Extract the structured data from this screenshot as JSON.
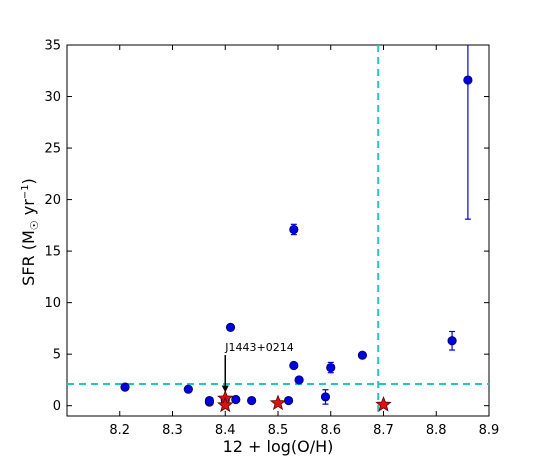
{
  "chart_data": {
    "type": "scatter",
    "xlabel": "12 + log(O/H)",
    "ylabel_main": "SFR (M",
    "ylabel_sub": "☉",
    "ylabel_unit": " yr",
    "ylabel_sup": "−1",
    "ylabel_close": ")",
    "xlim": [
      8.1,
      8.9
    ],
    "ylim": [
      -1,
      35
    ],
    "x_ticks": [
      "8.2",
      "8.3",
      "8.4",
      "8.5",
      "8.6",
      "8.7",
      "8.8",
      "8.9"
    ],
    "y_ticks": [
      "0",
      "5",
      "10",
      "15",
      "20",
      "25",
      "30",
      "35"
    ],
    "grid": false,
    "colors": {
      "circles": "#0000dd",
      "stars": "#dd1111",
      "reference_lines": "#22c4c4"
    },
    "reference_lines": {
      "horizontal_y": 2.1,
      "vertical_x": 8.69
    },
    "circles": [
      {
        "x": 8.21,
        "y": 1.8
      },
      {
        "x": 8.33,
        "y": 1.6
      },
      {
        "x": 8.37,
        "y": 0.35
      },
      {
        "x": 8.37,
        "y": 0.5
      },
      {
        "x": 8.4,
        "y": 0.55
      },
      {
        "x": 8.41,
        "y": 7.6
      },
      {
        "x": 8.42,
        "y": 0.6
      },
      {
        "x": 8.45,
        "y": 0.5
      },
      {
        "x": 8.52,
        "y": 0.5
      },
      {
        "x": 8.53,
        "y": 3.9
      },
      {
        "x": 8.53,
        "y": 17.1,
        "err": 0.5
      },
      {
        "x": 8.54,
        "y": 2.5
      },
      {
        "x": 8.59,
        "y": 0.85,
        "err": 0.7
      },
      {
        "x": 8.6,
        "y": 3.7,
        "err": 0.5
      },
      {
        "x": 8.66,
        "y": 4.9
      },
      {
        "x": 8.83,
        "y": 6.3,
        "err": 0.9
      },
      {
        "x": 8.86,
        "y": 31.6,
        "err_low": 13.5,
        "err_high": 10
      }
    ],
    "stars": [
      {
        "x": 8.4,
        "y": 0.7
      },
      {
        "x": 8.4,
        "y": 0.05
      },
      {
        "x": 8.5,
        "y": 0.25
      },
      {
        "x": 8.7,
        "y": 0.1
      }
    ],
    "annotation": {
      "text": "J1443+0214",
      "point_x": 8.4,
      "point_y": 0.7,
      "text_y": 5.3
    }
  }
}
